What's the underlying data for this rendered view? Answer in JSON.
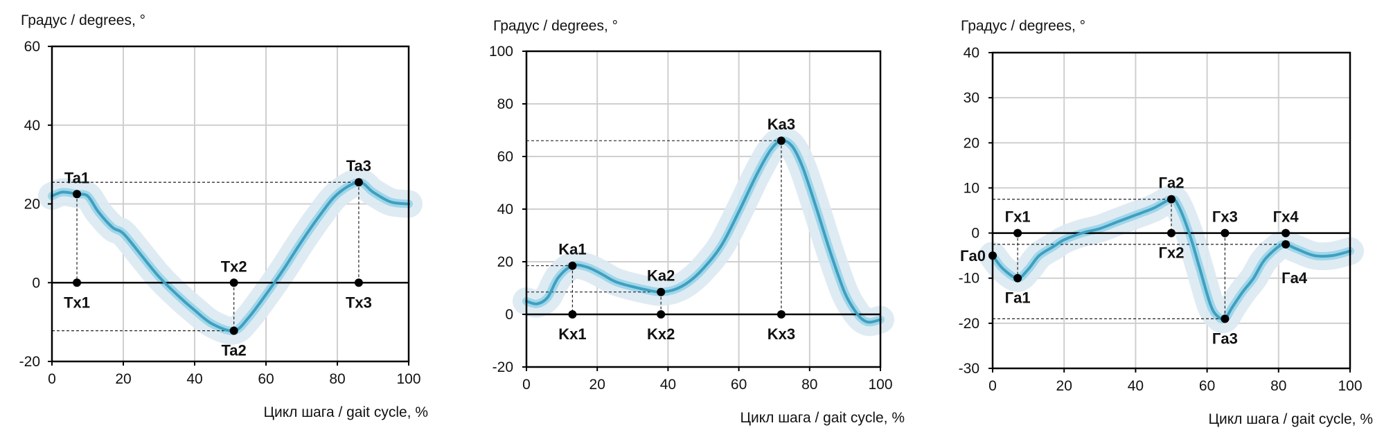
{
  "chart_data": [
    {
      "type": "line",
      "ylabel": "Градус / degrees, °",
      "xlabel": "Цикл шага / gait cycle, %",
      "xlim": [
        0,
        100
      ],
      "ylim": [
        -20,
        60
      ],
      "xticks": [
        0,
        20,
        40,
        60,
        80,
        100
      ],
      "yticks": [
        -20,
        0,
        20,
        40,
        60
      ],
      "grid": true,
      "colors": {
        "line": "#3f9fbf",
        "band": "#dce9f1",
        "ci": "#9fd6ea"
      },
      "series": [
        {
          "x": [
            0,
            3,
            7,
            10,
            13,
            17,
            20,
            25,
            30,
            35,
            40,
            45,
            51,
            55,
            60,
            65,
            70,
            75,
            80,
            86,
            90,
            95,
            100
          ],
          "y": [
            22,
            23,
            22.5,
            22,
            18,
            14,
            12.5,
            7,
            1.5,
            -3,
            -7,
            -10.5,
            -12.2,
            -9,
            -3,
            3.5,
            10.5,
            17,
            22.5,
            25.5,
            23,
            20.5,
            20
          ]
        }
      ],
      "markers": [
        {
          "label": "Ta1",
          "x": 7,
          "y": 22.5,
          "pos": "above"
        },
        {
          "label": "Tx1",
          "x": 7,
          "y": 0,
          "pos": "below"
        },
        {
          "label": "Tx2",
          "x": 51,
          "y": 0,
          "pos": "above"
        },
        {
          "label": "Ta2",
          "x": 51,
          "y": -12.2,
          "pos": "below"
        },
        {
          "label": "Ta3",
          "x": 86,
          "y": 25.5,
          "pos": "above"
        },
        {
          "label": "Tx3",
          "x": 86,
          "y": 0,
          "pos": "below"
        }
      ],
      "guides": [
        {
          "from": [
            0,
            25.5
          ],
          "to": [
            86,
            25.5
          ]
        },
        {
          "from": [
            0,
            -12.2
          ],
          "to": [
            51,
            -12.2
          ]
        },
        {
          "from": [
            7,
            22.5
          ],
          "to": [
            7,
            0
          ]
        },
        {
          "from": [
            51,
            0
          ],
          "to": [
            51,
            -12.2
          ]
        },
        {
          "from": [
            86,
            25.5
          ],
          "to": [
            86,
            0
          ]
        }
      ]
    },
    {
      "type": "line",
      "ylabel": "Градус / degrees, °",
      "xlabel": "Цикл шага / gait cycle, %",
      "xlim": [
        0,
        100
      ],
      "ylim": [
        -20,
        100
      ],
      "xticks": [
        0,
        20,
        40,
        60,
        80,
        100
      ],
      "yticks": [
        -20,
        0,
        20,
        40,
        60,
        80,
        100
      ],
      "grid": true,
      "colors": {
        "line": "#3f9fbf",
        "band": "#dce9f1",
        "ci": "#9fd6ea"
      },
      "series": [
        {
          "x": [
            0,
            3,
            6,
            9,
            13,
            17,
            21,
            25,
            30,
            35,
            38,
            42,
            46,
            50,
            55,
            60,
            65,
            69,
            72,
            75,
            78,
            82,
            86,
            90,
            93,
            95,
            97,
            100
          ],
          "y": [
            5,
            4,
            6.5,
            14,
            18.5,
            18,
            15.5,
            12.5,
            10.5,
            9,
            8.5,
            9.5,
            12.5,
            17.5,
            26,
            39,
            53,
            62.5,
            66,
            64,
            56,
            40,
            23,
            8,
            1,
            -2,
            -3,
            -2
          ]
        }
      ],
      "markers": [
        {
          "label": "Ka1",
          "x": 13,
          "y": 18.5,
          "pos": "above"
        },
        {
          "label": "Kx1",
          "x": 13,
          "y": 0,
          "pos": "below"
        },
        {
          "label": "Ka2",
          "x": 38,
          "y": 8.5,
          "pos": "above"
        },
        {
          "label": "Kx2",
          "x": 38,
          "y": 0,
          "pos": "below"
        },
        {
          "label": "Ka3",
          "x": 72,
          "y": 66,
          "pos": "above"
        },
        {
          "label": "Kx3",
          "x": 72,
          "y": 0,
          "pos": "below"
        }
      ],
      "guides": [
        {
          "from": [
            0,
            66
          ],
          "to": [
            72,
            66
          ]
        },
        {
          "from": [
            0,
            18.5
          ],
          "to": [
            13,
            18.5
          ]
        },
        {
          "from": [
            0,
            8.5
          ],
          "to": [
            38,
            8.5
          ]
        },
        {
          "from": [
            13,
            18.5
          ],
          "to": [
            13,
            0
          ]
        },
        {
          "from": [
            38,
            8.5
          ],
          "to": [
            38,
            0
          ]
        },
        {
          "from": [
            72,
            66
          ],
          "to": [
            72,
            0
          ]
        }
      ]
    },
    {
      "type": "line",
      "ylabel": "Градус / degrees, °",
      "xlabel": "Цикл шага / gait cycle, %",
      "xlim": [
        0,
        100
      ],
      "ylim": [
        -30,
        40
      ],
      "xticks": [
        0,
        20,
        40,
        60,
        80,
        100
      ],
      "yticks": [
        -30,
        -20,
        -10,
        0,
        10,
        20,
        30,
        40
      ],
      "grid": true,
      "colors": {
        "line": "#3f9fbf",
        "band": "#dce9f1",
        "ci": "#9fd6ea"
      },
      "series": [
        {
          "x": [
            0,
            3,
            7,
            10,
            13,
            17,
            20,
            25,
            30,
            35,
            40,
            45,
            50,
            52,
            55,
            58,
            61,
            63,
            65,
            67,
            70,
            73,
            76,
            80,
            82,
            85,
            90,
            95,
            100
          ],
          "y": [
            -5,
            -8,
            -10,
            -8,
            -5,
            -3,
            -1.5,
            0,
            1,
            2.5,
            4,
            5.5,
            7.5,
            6,
            0,
            -8,
            -16,
            -18.5,
            -19,
            -16.5,
            -13,
            -10,
            -6,
            -3,
            -2.5,
            -3.5,
            -5,
            -5,
            -4
          ]
        }
      ],
      "markers": [
        {
          "label": "Гa0",
          "x": 0,
          "y": -5,
          "pos": "left"
        },
        {
          "label": "Гx1",
          "x": 7,
          "y": 0,
          "pos": "above"
        },
        {
          "label": "Гa1",
          "x": 7,
          "y": -10,
          "pos": "below"
        },
        {
          "label": "Гa2",
          "x": 50,
          "y": 7.5,
          "pos": "above"
        },
        {
          "label": "Гx2",
          "x": 50,
          "y": 0,
          "pos": "below"
        },
        {
          "label": "Гx3",
          "x": 65,
          "y": 0,
          "pos": "above"
        },
        {
          "label": "Гa3",
          "x": 65,
          "y": -19,
          "pos": "below"
        },
        {
          "label": "Гx4",
          "x": 82,
          "y": 0,
          "pos": "above"
        },
        {
          "label": "Гa4",
          "x": 82,
          "y": -2.5,
          "pos": "below-right"
        }
      ],
      "guides": [
        {
          "from": [
            0,
            7.5
          ],
          "to": [
            50,
            7.5
          ]
        },
        {
          "from": [
            0,
            -2.5
          ],
          "to": [
            82,
            -2.5
          ]
        },
        {
          "from": [
            0,
            -19
          ],
          "to": [
            65,
            -19
          ]
        },
        {
          "from": [
            7,
            0
          ],
          "to": [
            7,
            -10
          ]
        },
        {
          "from": [
            50,
            7.5
          ],
          "to": [
            50,
            0
          ]
        },
        {
          "from": [
            65,
            0
          ],
          "to": [
            65,
            -19
          ]
        }
      ]
    }
  ]
}
